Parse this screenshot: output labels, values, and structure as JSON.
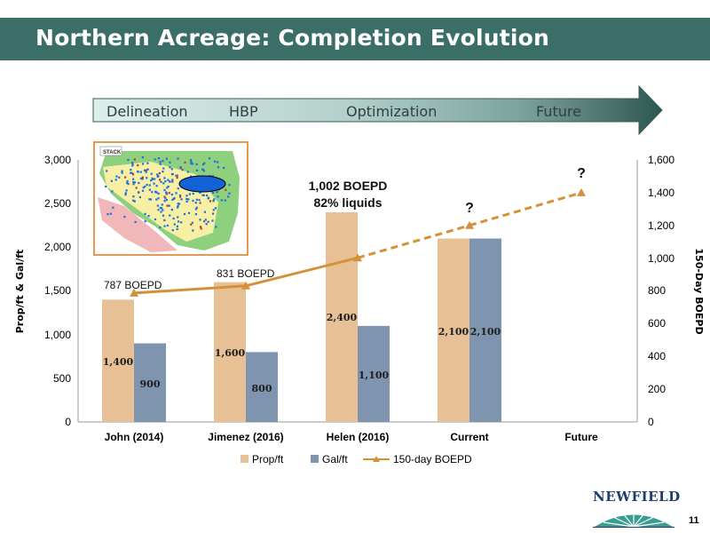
{
  "slide": {
    "title": "Northern Acreage: Completion Evolution",
    "page_number": "11",
    "logo_text": "NEWFIELD",
    "map_label": "STACK",
    "stages": [
      "Delineation",
      "HBP",
      "Optimization",
      "Future"
    ]
  },
  "colors": {
    "title_bar": "#3a6e67",
    "prop": "#e8c096",
    "gal": "#7f94ae",
    "boepd": "#d5903a"
  },
  "chart_data": {
    "type": "bar",
    "categories": [
      "John (2014)",
      "Jimenez (2016)",
      "Helen (2016)",
      "Current",
      "Future"
    ],
    "series": [
      {
        "name": "Prop/ft",
        "type": "bar",
        "axis": "left",
        "values": [
          1400,
          1600,
          2400,
          2100,
          null
        ],
        "labels": [
          "1,400",
          "1,600",
          "2,400",
          "2,100",
          ""
        ]
      },
      {
        "name": "Gal/ft",
        "type": "bar",
        "axis": "left",
        "values": [
          900,
          800,
          1100,
          2100,
          null
        ],
        "labels": [
          "900",
          "800",
          "1,100",
          "2,100",
          ""
        ]
      },
      {
        "name": "150-day BOEPD",
        "type": "line",
        "axis": "right",
        "values": [
          787,
          831,
          1002,
          1200,
          1400
        ]
      }
    ],
    "ylabel": "Prop/ft & Gal/ft",
    "y2label": "150-Day BOEPD",
    "ylim": [
      0,
      3000
    ],
    "y2lim": [
      0,
      1600
    ],
    "yticks": [
      "0",
      "500",
      "1,000",
      "1,500",
      "2,000",
      "2,500",
      "3,000"
    ],
    "y2ticks": [
      "0",
      "200",
      "400",
      "600",
      "800",
      "1,000",
      "1,200",
      "1,400",
      "1,600"
    ],
    "annotations": {
      "john": "787 BOEPD",
      "jimenez": "831 BOEPD",
      "helen_line1": "1,002 BOEPD",
      "helen_line2": "82% liquids",
      "current_q": "?",
      "future_q": "?"
    },
    "legend_position": "bottom"
  }
}
